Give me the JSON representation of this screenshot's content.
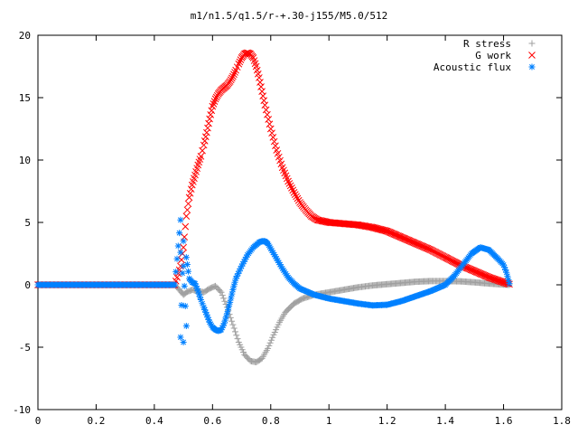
{
  "chart_data": {
    "type": "scatter",
    "title": "m1/n1.5/q1.5/r-+.30-j155/M5.0/512",
    "xlabel": "",
    "ylabel": "",
    "xlim": [
      0,
      1.8
    ],
    "ylim": [
      -10,
      20
    ],
    "xticks": [
      "0",
      "0.2",
      "0.4",
      "0.6",
      "0.8",
      "1",
      "1.2",
      "1.4",
      "1.6",
      "1.8"
    ],
    "yticks": [
      "-10",
      "-5",
      "0",
      "5",
      "10",
      "15",
      "20"
    ],
    "grid": false,
    "legend_position": "top-right",
    "series": [
      {
        "name": "R stress",
        "marker": "plus",
        "color": "#a0a0a0",
        "points": [
          [
            0.0,
            0
          ],
          [
            0.1,
            0
          ],
          [
            0.2,
            0
          ],
          [
            0.3,
            0
          ],
          [
            0.4,
            0
          ],
          [
            0.47,
            0
          ],
          [
            0.49,
            -0.5
          ],
          [
            0.5,
            -0.8
          ],
          [
            0.51,
            -0.6
          ],
          [
            0.53,
            -0.4
          ],
          [
            0.55,
            -0.5
          ],
          [
            0.57,
            -0.6
          ],
          [
            0.59,
            -0.3
          ],
          [
            0.61,
            -0.1
          ],
          [
            0.63,
            -0.6
          ],
          [
            0.65,
            -1.8
          ],
          [
            0.67,
            -3.2
          ],
          [
            0.69,
            -4.6
          ],
          [
            0.71,
            -5.6
          ],
          [
            0.73,
            -6.1
          ],
          [
            0.75,
            -6.2
          ],
          [
            0.77,
            -5.9
          ],
          [
            0.79,
            -5.1
          ],
          [
            0.81,
            -4.0
          ],
          [
            0.83,
            -3.0
          ],
          [
            0.85,
            -2.2
          ],
          [
            0.88,
            -1.5
          ],
          [
            0.91,
            -1.1
          ],
          [
            0.95,
            -0.8
          ],
          [
            1.0,
            -0.6
          ],
          [
            1.05,
            -0.4
          ],
          [
            1.1,
            -0.2
          ],
          [
            1.15,
            -0.05
          ],
          [
            1.2,
            0.05
          ],
          [
            1.25,
            0.15
          ],
          [
            1.3,
            0.25
          ],
          [
            1.35,
            0.3
          ],
          [
            1.4,
            0.3
          ],
          [
            1.45,
            0.28
          ],
          [
            1.5,
            0.2
          ],
          [
            1.55,
            0.1
          ],
          [
            1.6,
            0.02
          ],
          [
            1.62,
            0
          ]
        ]
      },
      {
        "name": "G work",
        "marker": "cross",
        "color": "#ff0000",
        "points": [
          [
            0.0,
            0
          ],
          [
            0.1,
            0
          ],
          [
            0.2,
            0
          ],
          [
            0.3,
            0
          ],
          [
            0.4,
            0
          ],
          [
            0.47,
            0
          ],
          [
            0.49,
            1.5
          ],
          [
            0.5,
            3.0
          ],
          [
            0.51,
            5.5
          ],
          [
            0.52,
            7.0
          ],
          [
            0.53,
            8.0
          ],
          [
            0.54,
            8.8
          ],
          [
            0.55,
            9.6
          ],
          [
            0.56,
            10.3
          ],
          [
            0.57,
            11.2
          ],
          [
            0.58,
            12.2
          ],
          [
            0.59,
            13.3
          ],
          [
            0.6,
            14.3
          ],
          [
            0.61,
            14.9
          ],
          [
            0.62,
            15.3
          ],
          [
            0.63,
            15.6
          ],
          [
            0.64,
            15.8
          ],
          [
            0.65,
            16.0
          ],
          [
            0.66,
            16.3
          ],
          [
            0.67,
            16.7
          ],
          [
            0.68,
            17.2
          ],
          [
            0.69,
            17.7
          ],
          [
            0.7,
            18.2
          ],
          [
            0.71,
            18.5
          ],
          [
            0.72,
            18.6
          ],
          [
            0.73,
            18.5
          ],
          [
            0.74,
            18.2
          ],
          [
            0.75,
            17.5
          ],
          [
            0.76,
            16.6
          ],
          [
            0.77,
            15.5
          ],
          [
            0.78,
            14.4
          ],
          [
            0.8,
            12.5
          ],
          [
            0.82,
            10.8
          ],
          [
            0.84,
            9.4
          ],
          [
            0.86,
            8.3
          ],
          [
            0.88,
            7.4
          ],
          [
            0.9,
            6.6
          ],
          [
            0.92,
            6.0
          ],
          [
            0.94,
            5.5
          ],
          [
            0.96,
            5.2
          ],
          [
            1.0,
            5.0
          ],
          [
            1.05,
            4.9
          ],
          [
            1.1,
            4.8
          ],
          [
            1.15,
            4.6
          ],
          [
            1.2,
            4.3
          ],
          [
            1.25,
            3.8
          ],
          [
            1.3,
            3.3
          ],
          [
            1.35,
            2.8
          ],
          [
            1.4,
            2.2
          ],
          [
            1.45,
            1.6
          ],
          [
            1.5,
            1.1
          ],
          [
            1.55,
            0.6
          ],
          [
            1.6,
            0.2
          ],
          [
            1.62,
            0.05
          ]
        ]
      },
      {
        "name": "Acoustic flux",
        "marker": "star",
        "color": "#0080ff",
        "points": [
          [
            0.0,
            0
          ],
          [
            0.1,
            0
          ],
          [
            0.2,
            0
          ],
          [
            0.3,
            0
          ],
          [
            0.4,
            0
          ],
          [
            0.47,
            0
          ],
          [
            0.49,
            5.2
          ],
          [
            0.49,
            2.6
          ],
          [
            0.49,
            -4.2
          ],
          [
            0.5,
            3.5
          ],
          [
            0.5,
            -4.6
          ],
          [
            0.5,
            1.5
          ],
          [
            0.51,
            -3.3
          ],
          [
            0.51,
            2.2
          ],
          [
            0.52,
            0.5
          ],
          [
            0.53,
            0.2
          ],
          [
            0.54,
            0.1
          ],
          [
            0.55,
            -0.5
          ],
          [
            0.56,
            -1.2
          ],
          [
            0.57,
            -1.8
          ],
          [
            0.58,
            -2.4
          ],
          [
            0.59,
            -3.0
          ],
          [
            0.6,
            -3.4
          ],
          [
            0.61,
            -3.6
          ],
          [
            0.62,
            -3.7
          ],
          [
            0.63,
            -3.6
          ],
          [
            0.64,
            -3.1
          ],
          [
            0.65,
            -2.3
          ],
          [
            0.66,
            -1.4
          ],
          [
            0.67,
            -0.4
          ],
          [
            0.68,
            0.5
          ],
          [
            0.7,
            1.5
          ],
          [
            0.72,
            2.4
          ],
          [
            0.74,
            3.0
          ],
          [
            0.76,
            3.4
          ],
          [
            0.77,
            3.5
          ],
          [
            0.78,
            3.5
          ],
          [
            0.79,
            3.3
          ],
          [
            0.8,
            2.9
          ],
          [
            0.82,
            2.1
          ],
          [
            0.84,
            1.3
          ],
          [
            0.86,
            0.6
          ],
          [
            0.88,
            0.1
          ],
          [
            0.9,
            -0.3
          ],
          [
            0.95,
            -0.8
          ],
          [
            1.0,
            -1.1
          ],
          [
            1.05,
            -1.3
          ],
          [
            1.1,
            -1.5
          ],
          [
            1.15,
            -1.65
          ],
          [
            1.2,
            -1.6
          ],
          [
            1.25,
            -1.3
          ],
          [
            1.3,
            -0.9
          ],
          [
            1.35,
            -0.5
          ],
          [
            1.4,
            0.0
          ],
          [
            1.43,
            0.7
          ],
          [
            1.46,
            1.6
          ],
          [
            1.49,
            2.5
          ],
          [
            1.52,
            3.0
          ],
          [
            1.55,
            2.8
          ],
          [
            1.58,
            2.1
          ],
          [
            1.6,
            1.6
          ],
          [
            1.61,
            1.0
          ],
          [
            1.62,
            0.1
          ]
        ]
      }
    ]
  }
}
